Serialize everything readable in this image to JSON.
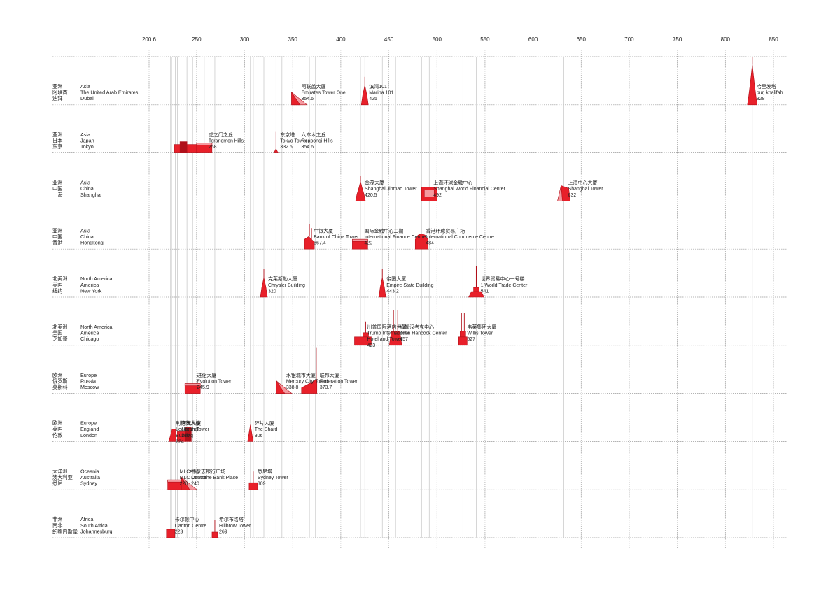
{
  "chart_data": {
    "type": "scatter",
    "title": "",
    "xlabel": "",
    "ylabel": "",
    "x_ticks": [
      "200.6",
      "250",
      "300",
      "350",
      "400",
      "450",
      "500",
      "550",
      "600",
      "650",
      "700",
      "750",
      "800",
      "850"
    ],
    "xlim": [
      200.6,
      850
    ],
    "grid": true,
    "accent_color": "#e8202a",
    "rows": [
      {
        "label_cn": [
          "亚洲",
          "阿联酋",
          "迪拜"
        ],
        "label_en": [
          "Asia",
          "The United Arab Emirates",
          "Dubai"
        ]
      },
      {
        "label_cn": [
          "亚洲",
          "日本",
          "东京"
        ],
        "label_en": [
          "Asia",
          "Japan",
          "Tokyo"
        ]
      },
      {
        "label_cn": [
          "亚洲",
          "中国",
          "上海"
        ],
        "label_en": [
          "Asia",
          "China",
          "Shanghai"
        ]
      },
      {
        "label_cn": [
          "亚洲",
          "中国",
          "香港"
        ],
        "label_en": [
          "Asia",
          "China",
          "Hongkong"
        ]
      },
      {
        "label_cn": [
          "北美洲",
          "美国",
          "纽约"
        ],
        "label_en": [
          "North America",
          "America",
          "New York"
        ]
      },
      {
        "label_cn": [
          "北美洲",
          "美国",
          "芝加哥"
        ],
        "label_en": [
          "North America",
          "America",
          "Chicago"
        ]
      },
      {
        "label_cn": [
          "欧洲",
          "俄罗斯",
          "莫斯科"
        ],
        "label_en": [
          "Europe",
          "Russia",
          "Moscow"
        ]
      },
      {
        "label_cn": [
          "欧洲",
          "英国",
          "伦敦"
        ],
        "label_en": [
          "Europe",
          "England",
          "London"
        ]
      },
      {
        "label_cn": [
          "大洋洲",
          "澳大利亚",
          "悉尼"
        ],
        "label_en": [
          "Oceania",
          "Australia",
          "Sydney"
        ]
      },
      {
        "label_cn": [
          "非洲",
          "南非",
          "约翰内斯堡"
        ],
        "label_en": [
          "Africa",
          "South Africa",
          "Johannesburg"
        ]
      }
    ],
    "buildings": [
      {
        "row": 0,
        "x": 354.6,
        "shape": "wedge",
        "label": [
          "阿联酋大厦",
          "Emirates Tower One",
          "354.6"
        ]
      },
      {
        "row": 0,
        "x": 425,
        "shape": "spire",
        "label": [
          "滨湾101",
          "Marina 101",
          "425"
        ]
      },
      {
        "row": 0,
        "x": 828,
        "shape": "burj",
        "label": [
          "哈里发塔",
          "burj khalifah",
          "828"
        ]
      },
      {
        "row": 1,
        "x": 354.6,
        "shape": "hills",
        "label": [
          "六本木之丘",
          "Roppongi Hills",
          "354.6"
        ]
      },
      {
        "row": 1,
        "x": 258,
        "shape": "block",
        "label": [
          "虎之门之丘",
          "Toranomon Hills",
          "258"
        ]
      },
      {
        "row": 1,
        "x": 332.6,
        "shape": "mast",
        "label": [
          "东京塔",
          "Tokyo Tower",
          "332.6"
        ]
      },
      {
        "row": 2,
        "x": 420.5,
        "shape": "pagoda",
        "label": [
          "金茂大厦",
          "Shanghai Jinmao Tower",
          "420.5"
        ]
      },
      {
        "row": 2,
        "x": 492,
        "shape": "opener",
        "label": [
          "上海环球金融中心",
          "Shanghai World Financial Center",
          "492"
        ]
      },
      {
        "row": 2,
        "x": 632,
        "shape": "twist",
        "label": [
          "上海中心大厦",
          "Shanghai Tower",
          "632"
        ]
      },
      {
        "row": 3,
        "x": 367.4,
        "shape": "boc",
        "label": [
          "中银大厦",
          "Bank of China Tower",
          "367.4"
        ]
      },
      {
        "row": 3,
        "x": 420,
        "shape": "block",
        "label": [
          "国际金融中心二期",
          "International Finance Centre",
          "420"
        ]
      },
      {
        "row": 3,
        "x": 484,
        "shape": "dome",
        "label": [
          "香港环球贸易广场",
          "International Commerce Centre",
          "484"
        ]
      },
      {
        "row": 4,
        "x": 320,
        "shape": "spire",
        "label": [
          "克莱斯勒大厦",
          "Chrysler Building",
          "320"
        ]
      },
      {
        "row": 4,
        "x": 443.2,
        "shape": "spire",
        "label": [
          "帝国大厦",
          "Empire State Building",
          "443.2"
        ]
      },
      {
        "row": 4,
        "x": 541,
        "shape": "wtc",
        "label": [
          "世界贸易中心一号楼",
          "1 World Trade Center",
          "541"
        ]
      },
      {
        "row": 5,
        "x": 423,
        "shape": "stepped",
        "label": [
          "川普国际酒店大厦",
          "Trump International",
          "Hotel and Tower",
          "423"
        ]
      },
      {
        "row": 5,
        "x": 457,
        "shape": "hancock",
        "label": [
          "约翰汉考克中心",
          "John Hancock Center",
          "457"
        ]
      },
      {
        "row": 5,
        "x": 527,
        "shape": "willis",
        "label": [
          "韦莱集团大厦",
          "Willis Tower",
          "527"
        ]
      },
      {
        "row": 6,
        "x": 245.9,
        "shape": "block",
        "label": [
          "进化大厦",
          "Evolution Tower",
          "245.9"
        ]
      },
      {
        "row": 6,
        "x": 338.8,
        "shape": "wedge",
        "label": [
          "水银城市大厦",
          "Mercury City Tower",
          "338.8"
        ]
      },
      {
        "row": 6,
        "x": 373.7,
        "shape": "federation",
        "label": [
          "联邦大厦",
          "Federation Tower",
          "373.7"
        ]
      },
      {
        "row": 7,
        "x": 224,
        "shape": "cluster",
        "label": [
          "利德贺大楼",
          "Leadenhall",
          "Building",
          "224"
        ]
      },
      {
        "row": 7,
        "x": 230,
        "shape": "cluster2",
        "label": [
          "苍鹭大厦",
          "Heron Tower",
          "230"
        ]
      },
      {
        "row": 7,
        "x": 306,
        "shape": "shard",
        "label": [
          "碎片大厦",
          "The Shard",
          "306"
        ]
      },
      {
        "row": 8,
        "x": 228,
        "shape": "block",
        "label": [
          "MLC中心",
          "MLC Centre",
          "228"
        ]
      },
      {
        "row": 8,
        "x": 240,
        "shape": "wedge",
        "label": [
          "德意志银行广场",
          "Deutsche Bank Place",
          "240"
        ]
      },
      {
        "row": 8,
        "x": 309,
        "shape": "sydney",
        "label": [
          "悉尼塔",
          "Sydney Tower",
          "309"
        ]
      },
      {
        "row": 9,
        "x": 223,
        "shape": "square",
        "label": [
          "卡尔顿中心",
          "Carlton Centre",
          "223"
        ]
      },
      {
        "row": 9,
        "x": 269,
        "shape": "hillbrow",
        "label": [
          "希尔布洛塔",
          "Hillbrow Tower",
          "269"
        ]
      }
    ]
  }
}
